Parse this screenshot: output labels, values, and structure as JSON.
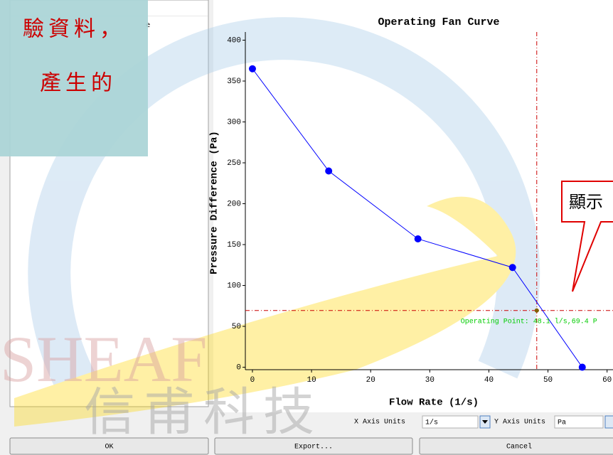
{
  "watermark": {
    "latin": "SHEAF",
    "chinese": "信甫科技"
  },
  "table": {
    "header_fragment": "e"
  },
  "note_callout": {
    "lines": [
      "驗資料，",
      "產生的"
    ]
  },
  "tip_callout": {
    "text": "顯示"
  },
  "chart_data": {
    "type": "line",
    "title": "Operating Fan Curve",
    "x_label": "Flow Rate (1/s)",
    "y_label": "Pressure Difference (Pa)",
    "x": [
      0,
      12.9,
      28,
      44,
      55.8
    ],
    "values": [
      365,
      240,
      157,
      122,
      0
    ],
    "color": "#0000ff",
    "xlim": [
      -1.2,
      61
    ],
    "ylim": [
      -3,
      410
    ],
    "xticks": [
      0,
      10,
      20,
      30,
      40,
      50,
      60
    ],
    "yticks": [
      0,
      50,
      100,
      150,
      200,
      250,
      300,
      350,
      400
    ],
    "operating_point": {
      "x": 48.1,
      "y": 69.4,
      "label": "Operating Point: 48.1 l/s,69.4 P",
      "line_color": "#cc0000",
      "label_color": "#00cc00"
    }
  },
  "controls": {
    "x_units_label": "X Axis Units",
    "x_units_value": "1/s",
    "y_units_label": "Y Axis Units",
    "y_units_value": "Pa"
  },
  "buttons": [
    "OK",
    "Export...",
    "Cancel"
  ]
}
